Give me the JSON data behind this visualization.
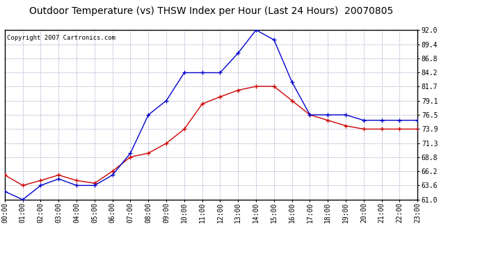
{
  "title": "Outdoor Temperature (vs) THSW Index per Hour (Last 24 Hours)  20070805",
  "copyright": "Copyright 2007 Cartronics.com",
  "hours": [
    "00:00",
    "01:00",
    "02:00",
    "03:00",
    "04:00",
    "05:00",
    "06:00",
    "07:00",
    "08:00",
    "09:00",
    "10:00",
    "11:00",
    "12:00",
    "13:00",
    "14:00",
    "15:00",
    "16:00",
    "17:00",
    "18:00",
    "19:00",
    "20:00",
    "21:00",
    "22:00",
    "23:00"
  ],
  "temp": [
    65.5,
    63.6,
    64.5,
    65.5,
    64.5,
    64.0,
    66.2,
    68.8,
    69.5,
    71.3,
    73.9,
    78.5,
    79.8,
    81.0,
    81.7,
    81.7,
    79.1,
    76.5,
    75.5,
    74.5,
    73.9,
    73.9,
    73.9,
    73.9
  ],
  "thsw": [
    62.5,
    61.0,
    63.6,
    64.8,
    63.6,
    63.6,
    65.5,
    69.5,
    76.5,
    79.1,
    84.2,
    84.2,
    84.2,
    87.8,
    92.0,
    90.2,
    82.5,
    76.5,
    76.5,
    76.5,
    75.5,
    75.5,
    75.5,
    75.5
  ],
  "ylim": [
    61.0,
    92.0
  ],
  "yticks": [
    61.0,
    63.6,
    66.2,
    68.8,
    71.3,
    73.9,
    76.5,
    79.1,
    81.7,
    84.2,
    86.8,
    89.4,
    92.0
  ],
  "temp_color": "#cc0000",
  "thsw_color": "#0000cc",
  "bg_color": "#ffffff",
  "plot_bg_color": "#ffffff",
  "grid_color": "#aaaacc",
  "title_fontsize": 10,
  "tick_fontsize": 7,
  "copyright_fontsize": 6.5
}
